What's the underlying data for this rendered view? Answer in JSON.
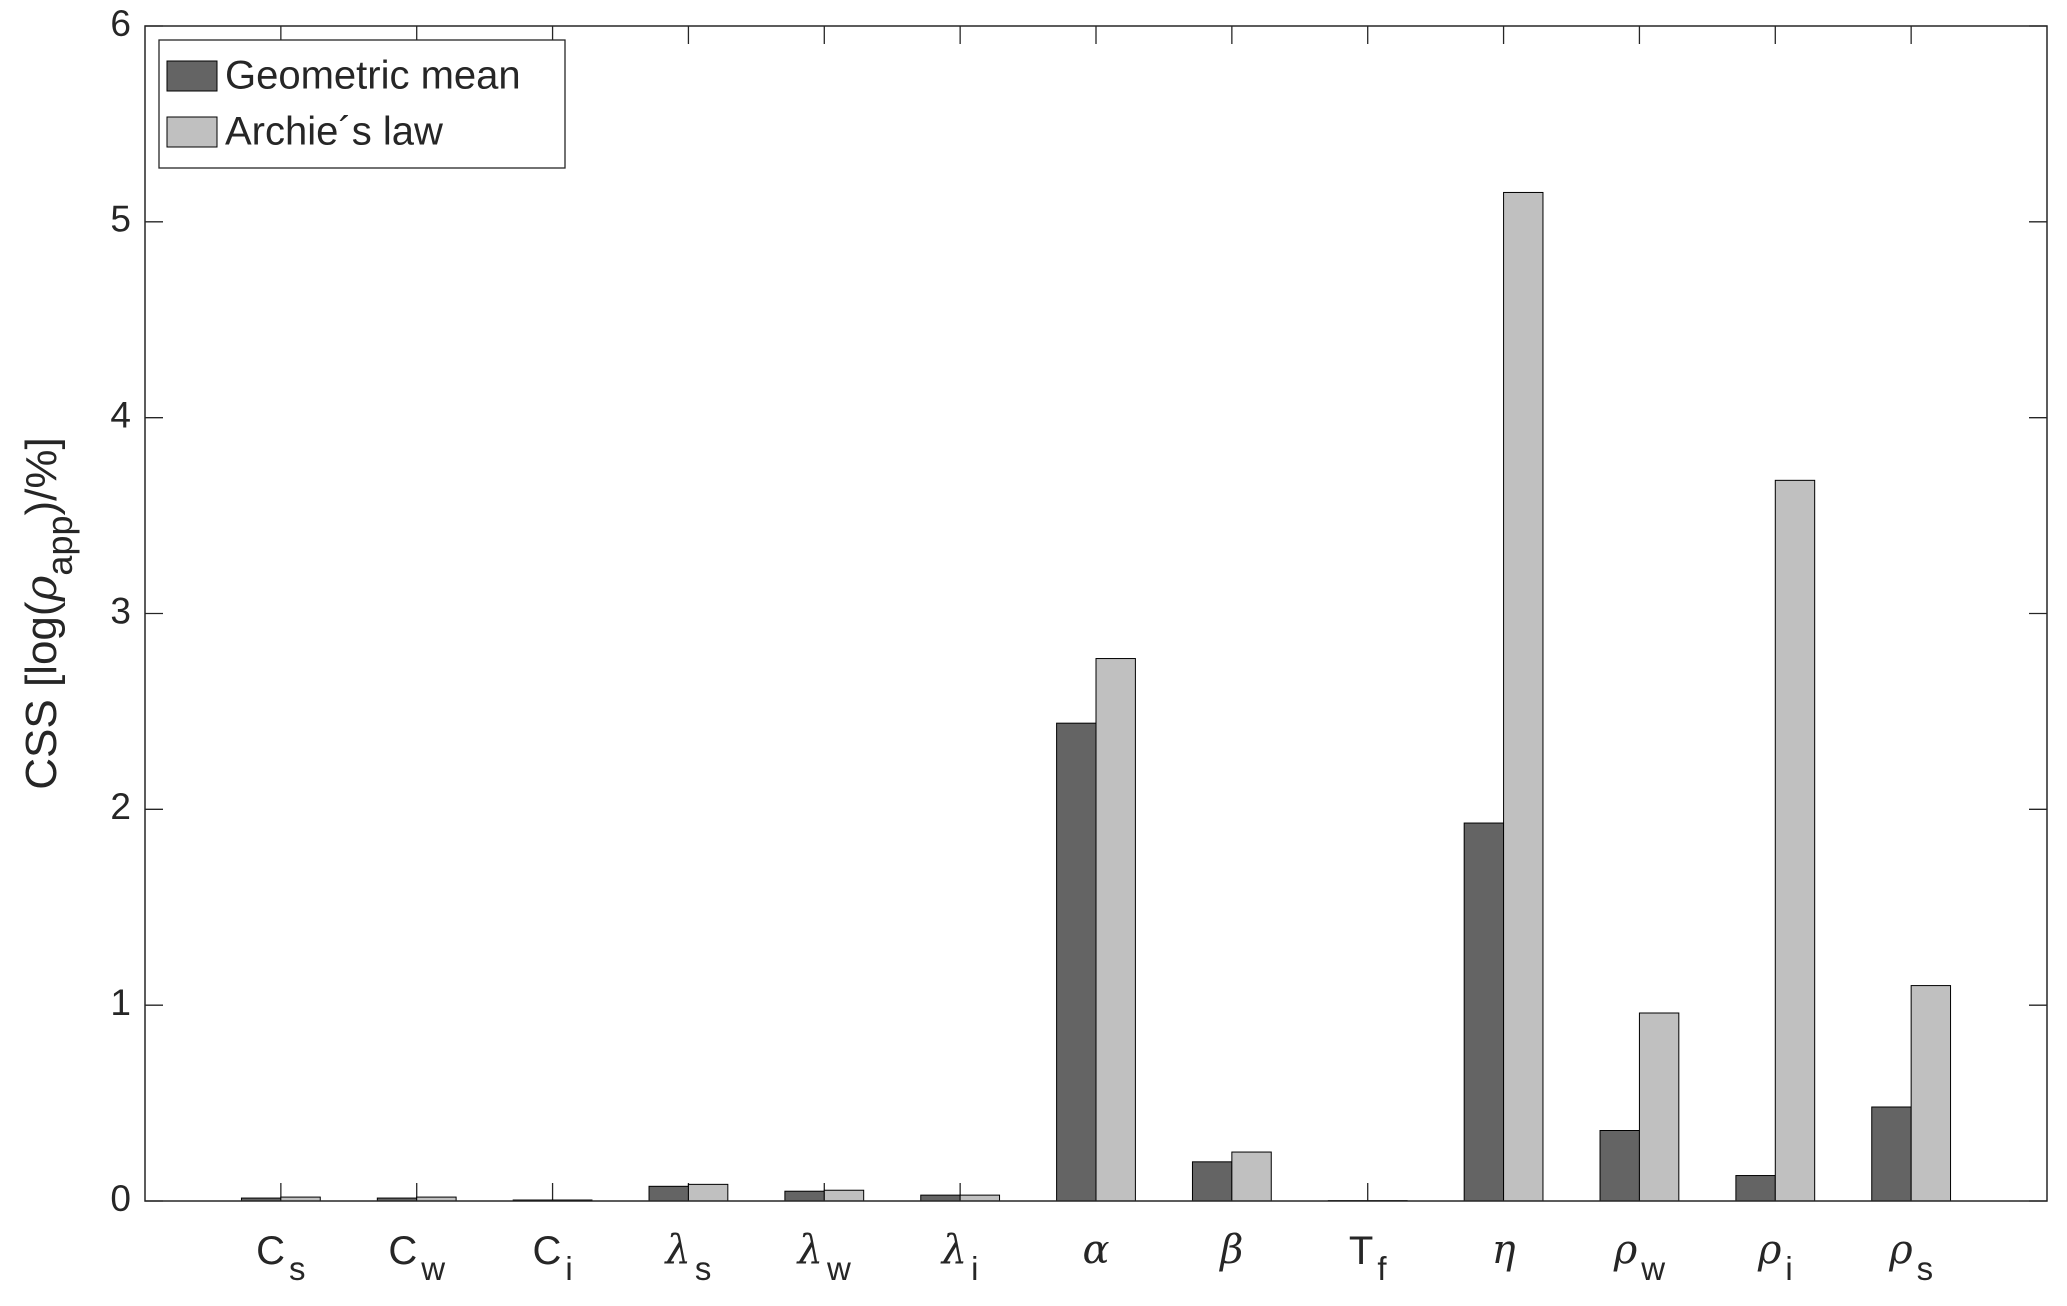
{
  "chart_data": {
    "type": "bar",
    "y_label": [
      "CSS [log(",
      "ρ",
      "app",
      ")/%]"
    ],
    "categories": [
      {
        "symbol": "C",
        "subscript": "s"
      },
      {
        "symbol": "C",
        "subscript": "w"
      },
      {
        "symbol": "C",
        "subscript": "i"
      },
      {
        "symbol": "λ",
        "subscript": "s"
      },
      {
        "symbol": "λ",
        "subscript": "w"
      },
      {
        "symbol": "λ",
        "subscript": "i"
      },
      {
        "symbol": "α",
        "subscript": null
      },
      {
        "symbol": "β",
        "subscript": null
      },
      {
        "symbol": "T",
        "subscript": "f"
      },
      {
        "symbol": "η",
        "subscript": null
      },
      {
        "symbol": "ρ",
        "subscript": "w"
      },
      {
        "symbol": "ρ",
        "subscript": "i"
      },
      {
        "symbol": "ρ",
        "subscript": "s"
      }
    ],
    "series": [
      {
        "name": "Geometric mean",
        "color": "#646464",
        "values": [
          0.015,
          0.015,
          0.005,
          0.075,
          0.05,
          0.03,
          2.44,
          0.2,
          0.002,
          1.93,
          0.36,
          0.13,
          0.48
        ]
      },
      {
        "name": "Archie´s law",
        "color": "#c0c0c0",
        "values": [
          0.02,
          0.02,
          0.005,
          0.085,
          0.055,
          0.03,
          2.77,
          0.25,
          0.002,
          5.15,
          0.96,
          3.68,
          1.1
        ]
      }
    ],
    "ylim": [
      0,
      6
    ],
    "yticks": [
      0,
      1,
      2,
      3,
      4,
      5,
      6
    ],
    "legend": "upper-left",
    "grid": false
  }
}
